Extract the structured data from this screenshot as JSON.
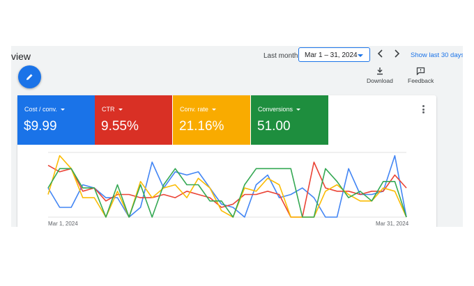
{
  "header": {
    "title": "view",
    "date_label": "Last month",
    "date_range": "Mar 1 – 31, 2024",
    "show_last": "Show last 30 days"
  },
  "toolbar": {
    "download_label": "Download",
    "feedback_label": "Feedback"
  },
  "metrics": [
    {
      "label": "Cost / conv.",
      "value": "$9.99",
      "color": "#1a73e8"
    },
    {
      "label": "CTR",
      "value": "9.55%",
      "color": "#d93025"
    },
    {
      "label": "Conv. rate",
      "value": "21.16%",
      "color": "#f9ab00"
    },
    {
      "label": "Conversions",
      "value": "51.00",
      "color": "#1e8e3e"
    }
  ],
  "chart_data": {
    "type": "line",
    "x_start_label": "Mar 1, 2024",
    "x_end_label": "Mar 31, 2024",
    "grid": true,
    "series": [
      {
        "color": "#4285f4",
        "values": [
          0.45,
          0.15,
          0.15,
          0.5,
          0.45,
          0.3,
          0.3,
          0.0,
          0.15,
          0.85,
          0.45,
          0.7,
          0.65,
          0.7,
          0.45,
          0.2,
          0.15,
          0.0,
          0.5,
          0.65,
          0.3,
          0.35,
          0.45,
          0.3,
          0.0,
          0.0,
          0.75,
          0.35,
          0.35,
          0.4,
          0.95,
          0.0
        ]
      },
      {
        "color": "#ea4335",
        "values": [
          0.8,
          0.7,
          0.75,
          0.4,
          0.45,
          0.25,
          0.35,
          0.35,
          0.3,
          0.3,
          0.35,
          0.3,
          0.4,
          0.35,
          0.3,
          0.15,
          0.2,
          0.35,
          0.35,
          0.4,
          0.35,
          0.0,
          0.0,
          0.85,
          0.45,
          0.4,
          0.4,
          0.35,
          0.4,
          0.4,
          0.65,
          0.45
        ]
      },
      {
        "color": "#fbbc04",
        "values": [
          0.35,
          0.95,
          0.75,
          0.3,
          0.3,
          0.0,
          0.4,
          0.0,
          0.55,
          0.3,
          0.45,
          0.5,
          0.3,
          0.6,
          0.45,
          0.1,
          0.0,
          0.45,
          0.4,
          0.6,
          0.5,
          0.0,
          0.0,
          0.0,
          0.4,
          0.5,
          0.35,
          0.25,
          0.25,
          0.45,
          0.4,
          0.0
        ]
      },
      {
        "color": "#34a853",
        "values": [
          0.45,
          0.75,
          0.75,
          0.45,
          0.45,
          0.0,
          0.5,
          0.0,
          0.5,
          0.0,
          0.5,
          0.75,
          0.5,
          0.5,
          0.25,
          0.25,
          0.0,
          0.5,
          0.75,
          0.75,
          0.75,
          0.75,
          0.0,
          0.0,
          0.75,
          0.55,
          0.3,
          0.4,
          0.25,
          0.55,
          0.55,
          0.0
        ]
      }
    ]
  }
}
